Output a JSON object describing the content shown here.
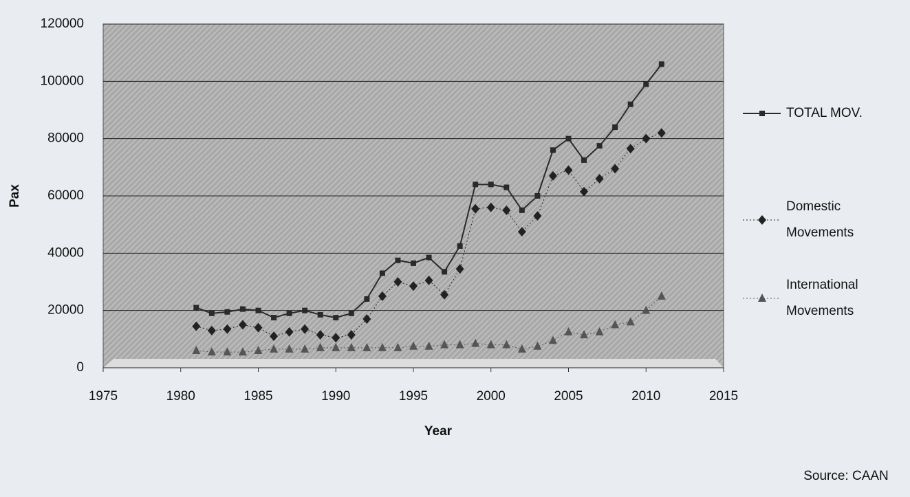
{
  "chart_data": {
    "type": "line",
    "x_label": "Year",
    "y_label": "Pax",
    "source": "Source: CAAN",
    "x": [
      1981,
      1982,
      1983,
      1984,
      1985,
      1986,
      1987,
      1988,
      1989,
      1990,
      1991,
      1992,
      1993,
      1994,
      1995,
      1996,
      1997,
      1998,
      1999,
      2000,
      2001,
      2002,
      2003,
      2004,
      2005,
      2006,
      2007,
      2008,
      2009,
      2010,
      2011
    ],
    "series": [
      {
        "name": "TOTAL MOV.",
        "color": "#2a2a2a",
        "marker": "square",
        "line": "solid",
        "values": [
          21000,
          19000,
          19500,
          20500,
          20000,
          17500,
          19000,
          20000,
          18500,
          17500,
          19000,
          24000,
          33000,
          37500,
          36500,
          38500,
          33500,
          42500,
          64000,
          64000,
          63000,
          55000,
          60000,
          76000,
          80000,
          72500,
          77500,
          84000,
          92000,
          99000,
          106000
        ]
      },
      {
        "name": "Domestic Movements",
        "color": "#222222",
        "marker": "diamond",
        "line": "dotted",
        "values": [
          14500,
          13000,
          13500,
          15000,
          14000,
          11000,
          12500,
          13500,
          11500,
          10500,
          11500,
          17000,
          25000,
          30000,
          28500,
          30500,
          25500,
          34500,
          55500,
          56000,
          55000,
          47500,
          53000,
          67000,
          69000,
          61500,
          66000,
          69500,
          76500,
          80000,
          82000
        ]
      },
      {
        "name": "International Movements",
        "color": "#555555",
        "marker": "triangle",
        "line": "dotted",
        "values": [
          6000,
          5500,
          5500,
          5500,
          6000,
          6500,
          6500,
          6500,
          7000,
          7000,
          7000,
          7000,
          7000,
          7000,
          7500,
          7500,
          8000,
          8000,
          8500,
          8000,
          8000,
          6500,
          7500,
          9500,
          12500,
          11500,
          12500,
          15000,
          16000,
          20000,
          25000
        ]
      }
    ],
    "xlim": [
      1975,
      2015
    ],
    "xticks": [
      1975,
      1980,
      1985,
      1990,
      1995,
      2000,
      2005,
      2010,
      2015
    ],
    "ylim": [
      0,
      120000
    ],
    "yticks": [
      0,
      20000,
      40000,
      60000,
      80000,
      100000,
      120000
    ],
    "grid": true,
    "legend": "right"
  }
}
